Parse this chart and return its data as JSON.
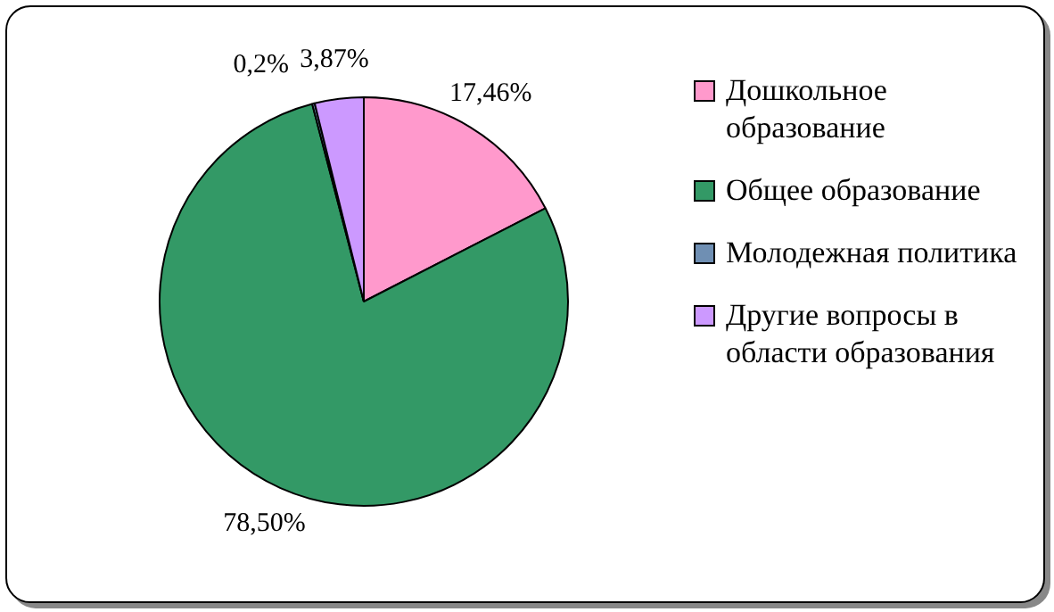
{
  "chart_data": {
    "type": "pie",
    "categories": [
      "Дошкольное образование",
      "Общее образование",
      "Молодежная политика",
      "Другие вопросы в области образования"
    ],
    "values": [
      17.46,
      78.5,
      0.2,
      3.87
    ],
    "colors": [
      "#ff99cc",
      "#339966",
      "#6f8fb3",
      "#cc99ff"
    ],
    "value_labels": [
      "17,46%",
      "78,50%",
      "0,2%",
      "3,87%"
    ],
    "legend": "right"
  }
}
